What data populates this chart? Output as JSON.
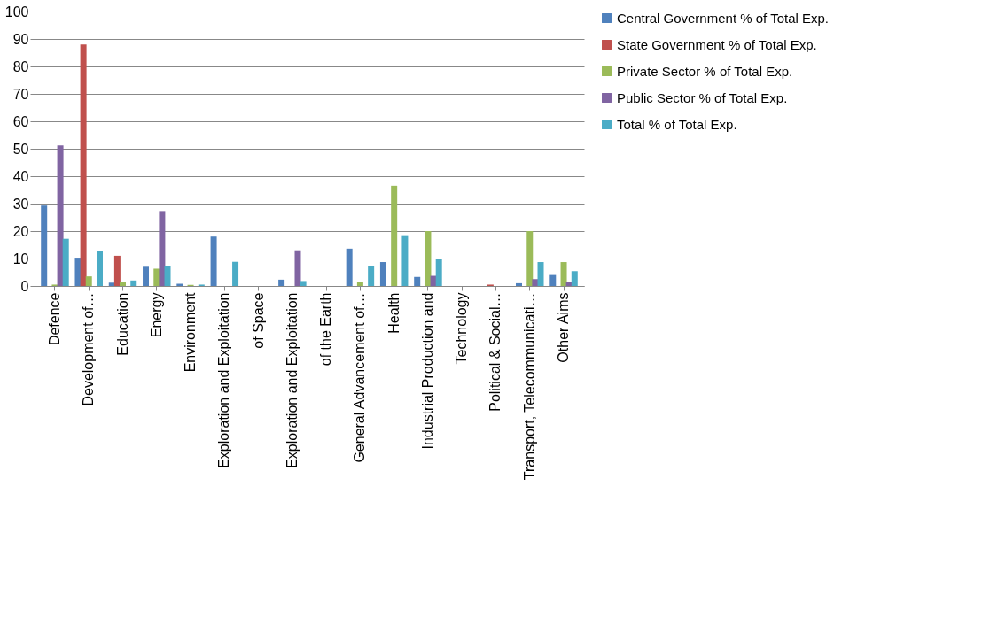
{
  "chart_data": {
    "type": "bar",
    "categories": [
      "Defence",
      "Development of…",
      "Education",
      "Energy",
      "Environment",
      "Exploration and Exploitation",
      "of Space",
      "Exploration and Exploitation",
      "of the Earth",
      "General Advancement of…",
      "Health",
      "Industrial Production and",
      "Technology",
      "Political & Social…",
      "Transport, Telecommunicati…",
      "Other Aims"
    ],
    "series": [
      {
        "name": "Central Government  % of Total  Exp.",
        "color": "#4f81bd",
        "values": [
          29.3,
          10.3,
          1.2,
          7,
          0.8,
          18,
          0,
          2.3,
          0,
          13.6,
          8.7,
          3.3,
          0,
          0,
          1,
          4
        ]
      },
      {
        "name": "State Government  % of Total  Exp.",
        "color": "#c0504d",
        "values": [
          0,
          88,
          11,
          0,
          0,
          0,
          0,
          0,
          0,
          0,
          0,
          0,
          0,
          0.5,
          0,
          0
        ]
      },
      {
        "name": "Private Sector  % of Total  Exp.",
        "color": "#9bbb59",
        "values": [
          0.5,
          3.5,
          1.5,
          6.3,
          0.4,
          0,
          0,
          0,
          0,
          1.3,
          36.5,
          20,
          0,
          0,
          20,
          8.7
        ]
      },
      {
        "name": "Public Sector  % of Total  Exp.",
        "color": "#8064a2",
        "values": [
          51.2,
          0,
          0,
          27.3,
          0,
          0,
          0,
          13,
          0,
          0,
          0,
          3.7,
          0,
          0,
          2.5,
          1.3
        ]
      },
      {
        "name": "Total  % of Total  Exp.",
        "color": "#4bacc6",
        "values": [
          17.2,
          12.7,
          2,
          7.2,
          0.5,
          8.8,
          0,
          1.8,
          0,
          7.2,
          18.5,
          9.8,
          0,
          0,
          8.7,
          5.4
        ]
      }
    ],
    "ylim": [
      0,
      100
    ],
    "yticks": [
      0,
      10,
      20,
      30,
      40,
      50,
      60,
      70,
      80,
      90,
      100
    ],
    "grid": "y",
    "legend": "right"
  }
}
